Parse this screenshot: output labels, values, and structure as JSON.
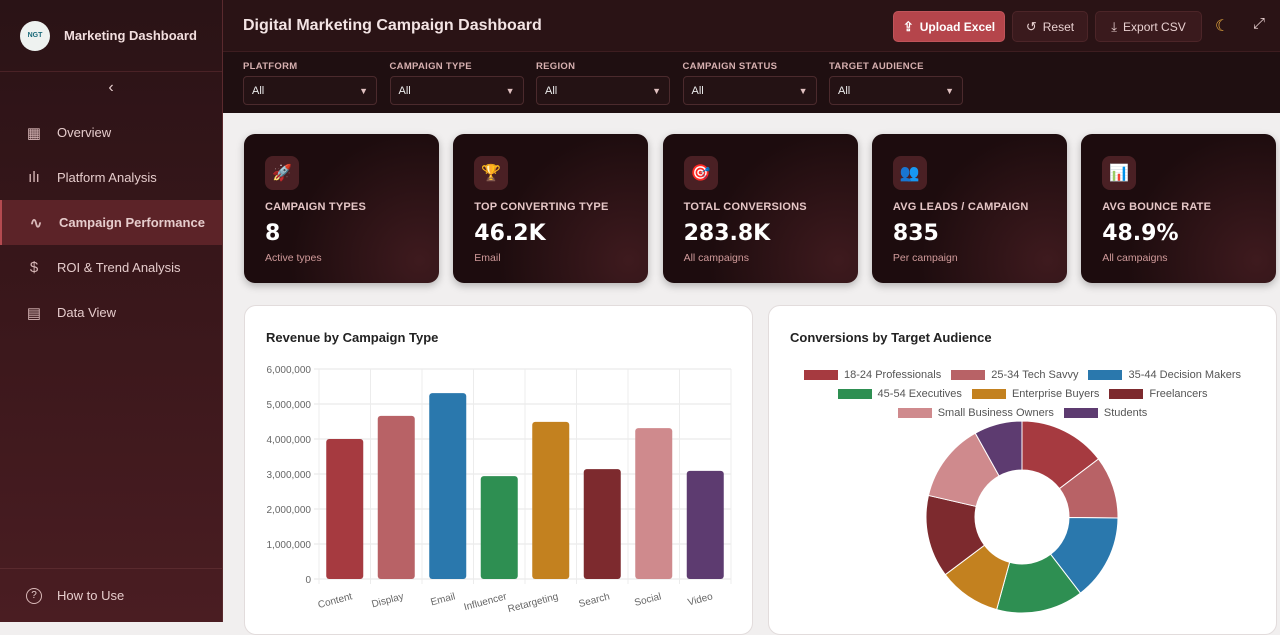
{
  "sidebar": {
    "brand": "Marketing Dashboard",
    "logo_text": "NGT",
    "collapse_icon": "chevron-left-icon",
    "items": [
      {
        "label": "Overview",
        "icon": "grid-icon"
      },
      {
        "label": "Platform Analysis",
        "icon": "bar-chart-icon"
      },
      {
        "label": "Campaign Performance",
        "icon": "activity-icon",
        "active": true
      },
      {
        "label": "ROI & Trend Analysis",
        "icon": "dollar-icon"
      },
      {
        "label": "Data View",
        "icon": "table-icon"
      }
    ],
    "footer": {
      "label": "How to Use",
      "icon": "help-circle-icon"
    }
  },
  "header": {
    "title": "Digital Marketing Campaign Dashboard",
    "upload": "Upload Excel",
    "reset": "Reset",
    "export": "Export CSV",
    "accent": "#b5454b"
  },
  "filters": [
    {
      "label": "PLATFORM",
      "value": "All"
    },
    {
      "label": "CAMPAIGN TYPE",
      "value": "All"
    },
    {
      "label": "REGION",
      "value": "All"
    },
    {
      "label": "CAMPAIGN STATUS",
      "value": "All"
    },
    {
      "label": "TARGET AUDIENCE",
      "value": "All"
    }
  ],
  "kpis": [
    {
      "icon": "🚀",
      "label": "CAMPAIGN TYPES",
      "value": "8",
      "sub": "Active types"
    },
    {
      "icon": "🏆",
      "label": "TOP CONVERTING TYPE",
      "value": "46.2K",
      "sub": "Email"
    },
    {
      "icon": "🎯",
      "label": "TOTAL CONVERSIONS",
      "value": "283.8K",
      "sub": "All campaigns"
    },
    {
      "icon": "👥",
      "label": "AVG LEADS / CAMPAIGN",
      "value": "835",
      "sub": "Per campaign"
    },
    {
      "icon": "📊",
      "label": "AVG BOUNCE RATE",
      "value": "48.9%",
      "sub": "All campaigns"
    }
  ],
  "chart_data": [
    {
      "type": "bar",
      "title": "Revenue by Campaign Type",
      "categories": [
        "Content",
        "Display",
        "Email",
        "Influencer",
        "Retargeting",
        "Search",
        "Social",
        "Video"
      ],
      "values": [
        4000000,
        4660000,
        5310000,
        2940000,
        4490000,
        3140000,
        4310000,
        3090000
      ],
      "colors": [
        "#a63a40",
        "#b86266",
        "#2a78ad",
        "#2e8f52",
        "#c3811f",
        "#7d2a2e",
        "#cf8a8d",
        "#5d3b70"
      ],
      "ylim": [
        0,
        6000000
      ],
      "yticks": [
        "0",
        "1,000,000",
        "2,000,000",
        "3,000,000",
        "4,000,000",
        "5,000,000",
        "6,000,000"
      ],
      "grid": true
    },
    {
      "type": "pie",
      "title": "Conversions by Target Audience",
      "legend": "top",
      "labels": [
        "18-24 Professionals",
        "25-34 Tech Savvy",
        "35-44 Decision Makers",
        "45-54 Executives",
        "Enterprise Buyers",
        "Freelancers",
        "Small Business Owners",
        "Students"
      ],
      "values": [
        41.7,
        29.8,
        41.0,
        41.7,
        29.8,
        39.4,
        37.8,
        23.0
      ],
      "colors": [
        "#a63a40",
        "#b86266",
        "#2a78ad",
        "#2e8f52",
        "#c3811f",
        "#7d2a2e",
        "#cf8a8d",
        "#5d3b70"
      ]
    }
  ]
}
